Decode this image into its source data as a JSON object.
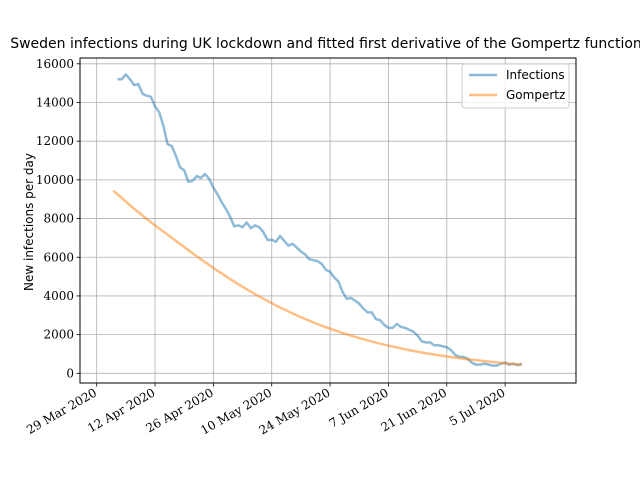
{
  "chart_data": {
    "type": "line",
    "title": "Sweden infections during UK lockdown and fitted first derivative of the Gompertz function",
    "xlabel": "",
    "ylabel": "New infections per day",
    "x_range": [
      "2020-03-25",
      "2020-07-22"
    ],
    "ylim": [
      -500,
      16300
    ],
    "grid": true,
    "legend_position": "top-right",
    "x_ticks": [
      {
        "date": "2020-03-29",
        "label": "29 Mar 2020"
      },
      {
        "date": "2020-04-12",
        "label": "12 Apr 2020"
      },
      {
        "date": "2020-04-26",
        "label": "26 Apr 2020"
      },
      {
        "date": "2020-05-10",
        "label": "10 May 2020"
      },
      {
        "date": "2020-05-24",
        "label": "24 May 2020"
      },
      {
        "date": "2020-06-07",
        "label": "7 Jun 2020"
      },
      {
        "date": "2020-06-21",
        "label": "21 Jun 2020"
      },
      {
        "date": "2020-07-05",
        "label": "5 Jul 2020"
      }
    ],
    "y_ticks": [
      0,
      2000,
      4000,
      6000,
      8000,
      10000,
      12000,
      14000,
      16000
    ],
    "series": [
      {
        "name": "Infections",
        "color": "#1f77b4",
        "points": [
          [
            "2020-04-03",
            15200
          ],
          [
            "2020-04-04",
            15200
          ],
          [
            "2020-04-05",
            15450
          ],
          [
            "2020-04-06",
            15200
          ],
          [
            "2020-04-07",
            14900
          ],
          [
            "2020-04-08",
            14950
          ],
          [
            "2020-04-09",
            14450
          ],
          [
            "2020-04-10",
            14350
          ],
          [
            "2020-04-11",
            14300
          ],
          [
            "2020-04-12",
            13800
          ],
          [
            "2020-04-13",
            13500
          ],
          [
            "2020-04-14",
            12800
          ],
          [
            "2020-04-15",
            11850
          ],
          [
            "2020-04-16",
            11750
          ],
          [
            "2020-04-17",
            11250
          ],
          [
            "2020-04-18",
            10650
          ],
          [
            "2020-04-19",
            10500
          ],
          [
            "2020-04-20",
            9900
          ],
          [
            "2020-04-21",
            9950
          ],
          [
            "2020-04-22",
            10200
          ],
          [
            "2020-04-23",
            10100
          ],
          [
            "2020-04-24",
            10300
          ],
          [
            "2020-04-25",
            10050
          ],
          [
            "2020-04-26",
            9600
          ],
          [
            "2020-04-27",
            9250
          ],
          [
            "2020-04-28",
            8850
          ],
          [
            "2020-04-29",
            8500
          ],
          [
            "2020-04-30",
            8100
          ],
          [
            "2020-05-01",
            7600
          ],
          [
            "2020-05-02",
            7650
          ],
          [
            "2020-05-03",
            7550
          ],
          [
            "2020-05-04",
            7800
          ],
          [
            "2020-05-05",
            7500
          ],
          [
            "2020-05-06",
            7650
          ],
          [
            "2020-05-07",
            7550
          ],
          [
            "2020-05-08",
            7300
          ],
          [
            "2020-05-09",
            6900
          ],
          [
            "2020-05-10",
            6900
          ],
          [
            "2020-05-11",
            6800
          ],
          [
            "2020-05-12",
            7100
          ],
          [
            "2020-05-13",
            6850
          ],
          [
            "2020-05-14",
            6600
          ],
          [
            "2020-05-15",
            6700
          ],
          [
            "2020-05-16",
            6500
          ],
          [
            "2020-05-17",
            6300
          ],
          [
            "2020-05-18",
            6150
          ],
          [
            "2020-05-19",
            5900
          ],
          [
            "2020-05-20",
            5850
          ],
          [
            "2020-05-21",
            5800
          ],
          [
            "2020-05-22",
            5650
          ],
          [
            "2020-05-23",
            5350
          ],
          [
            "2020-05-24",
            5250
          ],
          [
            "2020-05-25",
            4950
          ],
          [
            "2020-05-26",
            4750
          ],
          [
            "2020-05-27",
            4200
          ],
          [
            "2020-05-28",
            3850
          ],
          [
            "2020-05-29",
            3900
          ],
          [
            "2020-05-30",
            3750
          ],
          [
            "2020-05-31",
            3600
          ],
          [
            "2020-06-01",
            3350
          ],
          [
            "2020-06-02",
            3150
          ],
          [
            "2020-06-03",
            3150
          ],
          [
            "2020-06-04",
            2800
          ],
          [
            "2020-06-05",
            2750
          ],
          [
            "2020-06-06",
            2500
          ],
          [
            "2020-06-07",
            2350
          ],
          [
            "2020-06-08",
            2350
          ],
          [
            "2020-06-09",
            2550
          ],
          [
            "2020-06-10",
            2400
          ],
          [
            "2020-06-11",
            2350
          ],
          [
            "2020-06-12",
            2250
          ],
          [
            "2020-06-13",
            2150
          ],
          [
            "2020-06-14",
            1950
          ],
          [
            "2020-06-15",
            1650
          ],
          [
            "2020-06-16",
            1600
          ],
          [
            "2020-06-17",
            1600
          ],
          [
            "2020-06-18",
            1450
          ],
          [
            "2020-06-19",
            1450
          ],
          [
            "2020-06-20",
            1400
          ],
          [
            "2020-06-21",
            1350
          ],
          [
            "2020-06-22",
            1200
          ],
          [
            "2020-06-23",
            950
          ],
          [
            "2020-06-24",
            850
          ],
          [
            "2020-06-25",
            850
          ],
          [
            "2020-06-26",
            750
          ],
          [
            "2020-06-27",
            550
          ],
          [
            "2020-06-28",
            450
          ],
          [
            "2020-06-29",
            450
          ],
          [
            "2020-06-30",
            500
          ],
          [
            "2020-07-01",
            450
          ],
          [
            "2020-07-02",
            400
          ],
          [
            "2020-07-03",
            400
          ],
          [
            "2020-07-04",
            500
          ],
          [
            "2020-07-05",
            550
          ],
          [
            "2020-07-06",
            450
          ],
          [
            "2020-07-07",
            500
          ],
          [
            "2020-07-08",
            420
          ],
          [
            "2020-07-09",
            500
          ]
        ]
      },
      {
        "name": "Gompertz",
        "color": "#ff7f0e",
        "points": [
          [
            "2020-04-02",
            9450
          ],
          [
            "2020-04-07",
            8500
          ],
          [
            "2020-04-12",
            7650
          ],
          [
            "2020-04-17",
            6850
          ],
          [
            "2020-04-22",
            6050
          ],
          [
            "2020-04-27",
            5300
          ],
          [
            "2020-05-02",
            4600
          ],
          [
            "2020-05-07",
            3970
          ],
          [
            "2020-05-12",
            3400
          ],
          [
            "2020-05-17",
            2900
          ],
          [
            "2020-05-22",
            2460
          ],
          [
            "2020-05-27",
            2080
          ],
          [
            "2020-06-01",
            1760
          ],
          [
            "2020-06-06",
            1480
          ],
          [
            "2020-06-11",
            1240
          ],
          [
            "2020-06-16",
            1040
          ],
          [
            "2020-06-21",
            870
          ],
          [
            "2020-06-26",
            730
          ],
          [
            "2020-07-01",
            610
          ],
          [
            "2020-07-05",
            520
          ],
          [
            "2020-07-09",
            440
          ]
        ]
      }
    ]
  }
}
